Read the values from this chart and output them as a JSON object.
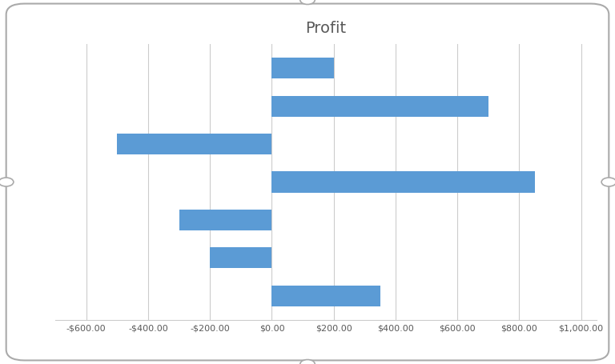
{
  "title": "Profit",
  "values": [
    200,
    700,
    -500,
    850,
    -300,
    -200,
    350
  ],
  "bar_color": "#5B9BD5",
  "xlim": [
    -700,
    1050
  ],
  "xticks": [
    -600,
    -400,
    -200,
    0,
    200,
    400,
    600,
    800,
    1000
  ],
  "background_color": "#FFFFFF",
  "grid_color": "#CCCCCC",
  "title_fontsize": 14,
  "bar_height": 0.55,
  "border_color": "#AAAAAA",
  "tick_fontsize": 8,
  "title_color": "#595959"
}
